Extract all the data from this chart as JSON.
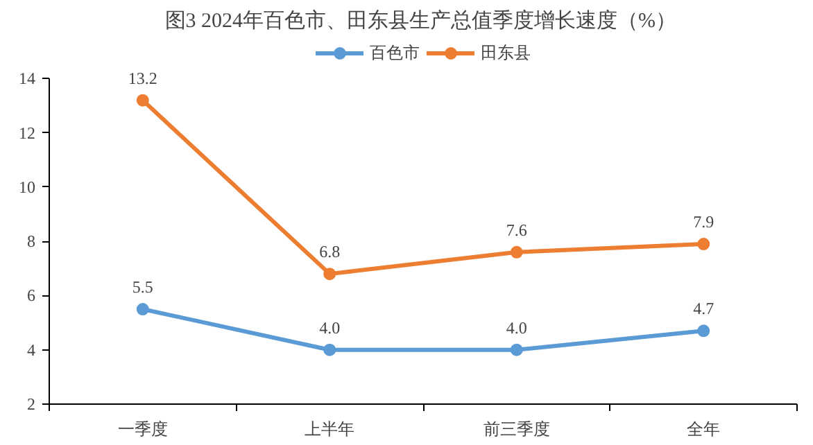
{
  "chart_data": {
    "type": "line",
    "title": "图3  2024年百色市、田东县生产总值季度增长速度（%）",
    "categories": [
      "一季度",
      "上半年",
      "前三季度",
      "全年"
    ],
    "series": [
      {
        "name": "百色市",
        "color": "#5b9bd5",
        "values": [
          5.5,
          4.0,
          4.0,
          4.7
        ],
        "value_labels": [
          "5.5",
          "4.0",
          "4.0",
          "4.7"
        ]
      },
      {
        "name": "田东县",
        "color": "#ed7d31",
        "values": [
          13.2,
          6.8,
          7.6,
          7.9
        ],
        "value_labels": [
          "13.2",
          "6.8",
          "7.6",
          "7.9"
        ]
      }
    ],
    "ylim": [
      2,
      14
    ],
    "yticks": [
      2,
      4,
      6,
      8,
      10,
      12,
      14
    ],
    "grid": false,
    "legend": "top",
    "marker": "circle",
    "line_style": "solid"
  }
}
